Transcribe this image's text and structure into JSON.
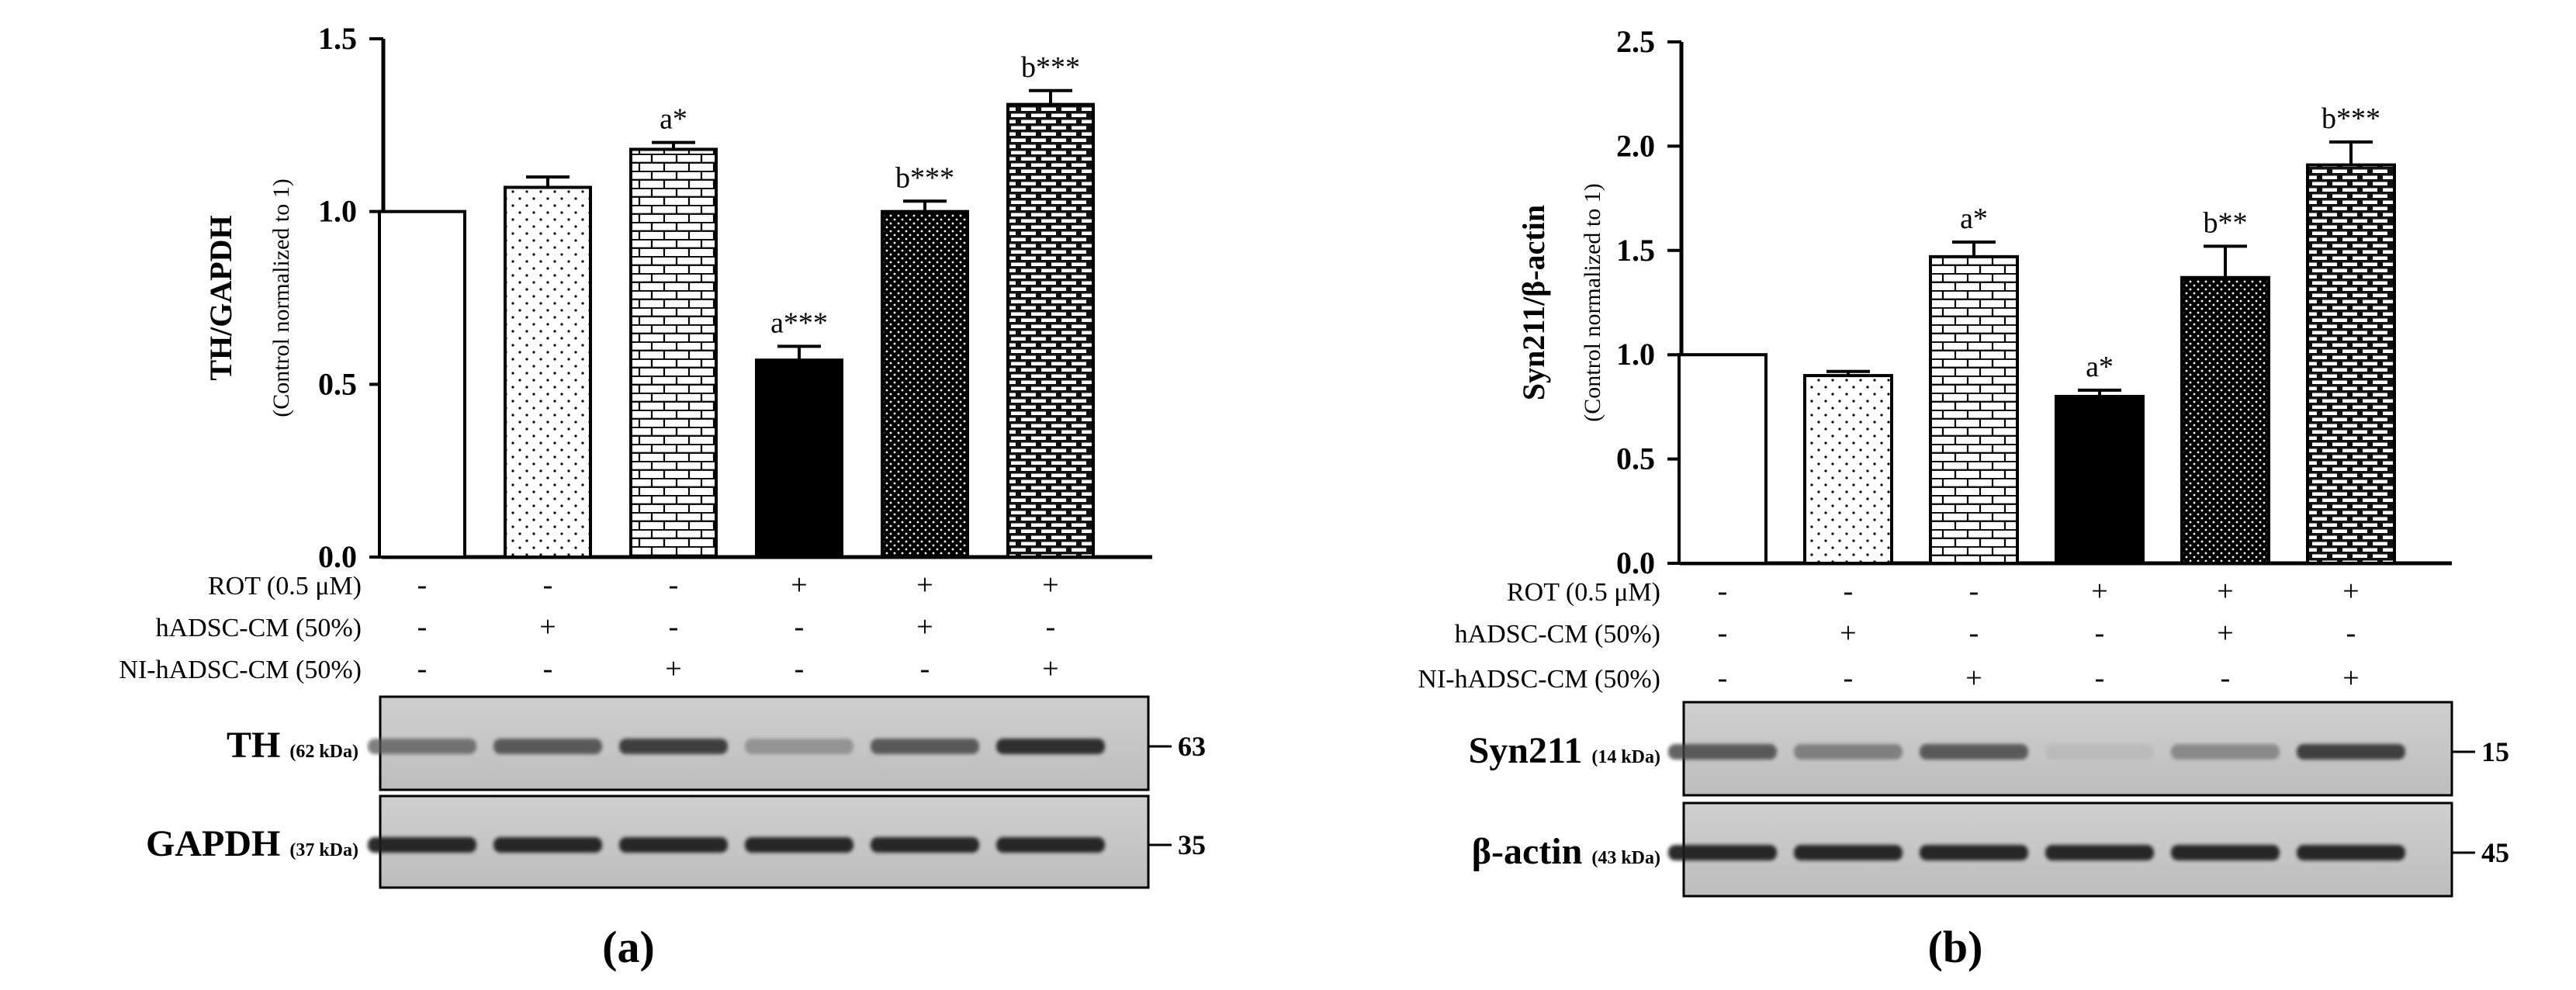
{
  "chart_data": [
    {
      "panel_label": "(a)",
      "type": "bar",
      "ylabel": "TH/GAPDH",
      "ylabel_sub": "(Control normalized to 1)",
      "ylim": [
        0,
        1.5
      ],
      "yticks": [
        0.0,
        0.5,
        1.0,
        1.5
      ],
      "ytick_labels": [
        "0.0",
        "0.5",
        "1.0",
        "1.5"
      ],
      "bars": [
        {
          "value": 1.0,
          "error": 0.0,
          "pattern": "empty",
          "annotation": ""
        },
        {
          "value": 1.07,
          "error": 0.03,
          "pattern": "sparse-dots",
          "annotation": ""
        },
        {
          "value": 1.18,
          "error": 0.02,
          "pattern": "bricks",
          "annotation": "a*"
        },
        {
          "value": 0.57,
          "error": 0.04,
          "pattern": "solid",
          "annotation": "a***"
        },
        {
          "value": 1.0,
          "error": 0.03,
          "pattern": "dense-dots",
          "annotation": "b***"
        },
        {
          "value": 1.31,
          "error": 0.04,
          "pattern": "dense-bricks",
          "annotation": "b***"
        }
      ],
      "conditions": [
        {
          "label": "ROT (0.5 μM)",
          "signs": [
            "-",
            "-",
            "-",
            "+",
            "+",
            "+"
          ]
        },
        {
          "label": "hADSC-CM (50%)",
          "signs": [
            "-",
            "+",
            "-",
            "-",
            "+",
            "-"
          ]
        },
        {
          "label": "NI-hADSC-CM (50%)",
          "signs": [
            "-",
            "-",
            "+",
            "-",
            "-",
            "+"
          ]
        }
      ],
      "blots": [
        {
          "name": "TH",
          "kda": "(62 kDa)",
          "marker": "63",
          "band_intensity": [
            0.62,
            0.72,
            0.82,
            0.45,
            0.72,
            0.88
          ]
        },
        {
          "name": "GAPDH",
          "kda": "(37 kDa)",
          "marker": "35",
          "band_intensity": [
            0.9,
            0.9,
            0.9,
            0.9,
            0.9,
            0.9
          ]
        }
      ]
    },
    {
      "panel_label": "(b)",
      "type": "bar",
      "ylabel": "Syn211/β-actin",
      "ylabel_sub": "(Control normalized to 1)",
      "ylim": [
        0,
        2.5
      ],
      "yticks": [
        0.0,
        0.5,
        1.0,
        1.5,
        2.0,
        2.5
      ],
      "ytick_labels": [
        "0.0",
        "0.5",
        "1.0",
        "1.5",
        "2.0",
        "2.5"
      ],
      "bars": [
        {
          "value": 1.0,
          "error": 0.0,
          "pattern": "empty",
          "annotation": ""
        },
        {
          "value": 0.9,
          "error": 0.02,
          "pattern": "sparse-dots",
          "annotation": ""
        },
        {
          "value": 1.47,
          "error": 0.07,
          "pattern": "bricks",
          "annotation": "a*"
        },
        {
          "value": 0.8,
          "error": 0.03,
          "pattern": "solid",
          "annotation": "a*"
        },
        {
          "value": 1.37,
          "error": 0.15,
          "pattern": "dense-dots",
          "annotation": "b**"
        },
        {
          "value": 1.91,
          "error": 0.11,
          "pattern": "dense-bricks",
          "annotation": "b***"
        }
      ],
      "conditions": [
        {
          "label": "ROT (0.5 μM)",
          "signs": [
            "-",
            "-",
            "-",
            "+",
            "+",
            "+"
          ]
        },
        {
          "label": "hADSC-CM (50%)",
          "signs": [
            "-",
            "+",
            "-",
            "-",
            "+",
            "-"
          ]
        },
        {
          "label": "NI-hADSC-CM (50%)",
          "signs": [
            "-",
            "-",
            "+",
            "-",
            "-",
            "+"
          ]
        }
      ],
      "blots": [
        {
          "name": "Syn211",
          "kda": "(14 kDa)",
          "marker": "15",
          "band_intensity": [
            0.72,
            0.55,
            0.72,
            0.18,
            0.5,
            0.82
          ]
        },
        {
          "name": "β-actin",
          "kda": "(43 kDa)",
          "marker": "45",
          "band_intensity": [
            0.9,
            0.9,
            0.9,
            0.9,
            0.9,
            0.9
          ]
        }
      ]
    }
  ]
}
